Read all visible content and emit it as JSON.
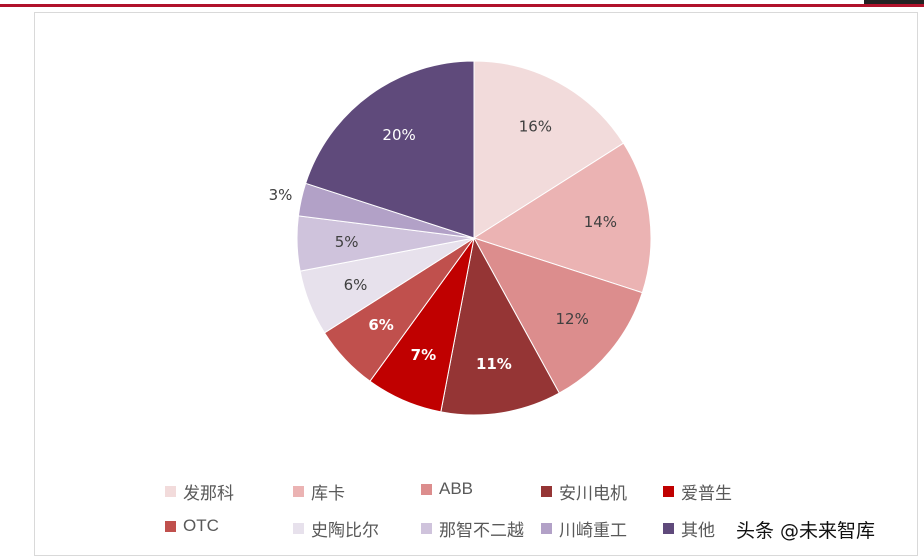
{
  "chart_data": {
    "type": "pie",
    "slices": [
      {
        "label": "发那科",
        "value": 16,
        "value_label": "16%",
        "color": "#f2dbdb",
        "label_color": "#404040",
        "bold": false
      },
      {
        "label": "库卡",
        "value": 14,
        "value_label": "14%",
        "color": "#ebb3b3",
        "label_color": "#404040",
        "bold": false
      },
      {
        "label": "ABB",
        "value": 12,
        "value_label": "12%",
        "color": "#dc8d8d",
        "label_color": "#404040",
        "bold": false
      },
      {
        "label": "安川电机",
        "value": 11,
        "value_label": "11%",
        "color": "#953535",
        "label_color": "#ffffff",
        "bold": true
      },
      {
        "label": "爱普生",
        "value": 7,
        "value_label": "7%",
        "color": "#c00000",
        "label_color": "#ffffff",
        "bold": true
      },
      {
        "label": "OTC",
        "value": 6,
        "value_label": "6%",
        "color": "#c0504d",
        "label_color": "#ffffff",
        "bold": true
      },
      {
        "label": "史陶比尔",
        "value": 6,
        "value_label": "6%",
        "color": "#e7e1ec",
        "label_color": "#404040",
        "bold": false
      },
      {
        "label": "那智不二越",
        "value": 5,
        "value_label": "5%",
        "color": "#cfc3dc",
        "label_color": "#404040",
        "bold": false
      },
      {
        "label": "川崎重工",
        "value": 3,
        "value_label": "3%",
        "color": "#b2a1c7",
        "label_color": "#404040",
        "bold": false
      },
      {
        "label": "其他",
        "value": 20,
        "value_label": "20%",
        "color": "#5f4a7b",
        "label_color": "#ffffff",
        "bold": false
      }
    ],
    "legend_position": "bottom",
    "title": ""
  },
  "watermark": {
    "text": "头条 @未来智库"
  }
}
